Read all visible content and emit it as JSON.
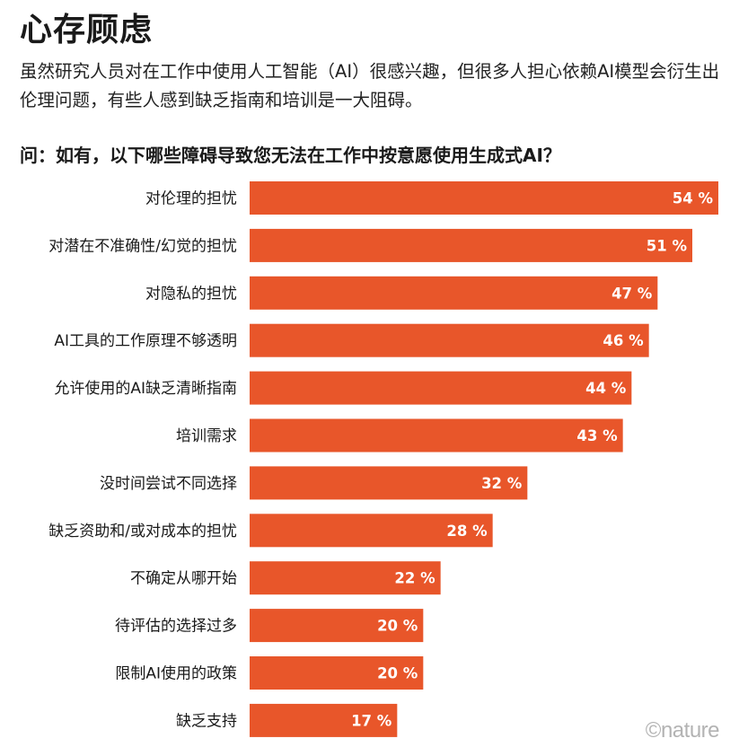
{
  "header": {
    "title": "心存顾虑",
    "subtitle": "虽然研究人员对在工作中使用人工智能（AI）很感兴趣，但很多人担心依赖AI模型会衍生出伦理问题，有些人感到缺乏指南和培训是一大阻碍。",
    "question": "问：如有，以下哪些障碍导致您无法在工作中按意愿使用生成式AI？"
  },
  "credit": "©nature",
  "colors": {
    "bar": "#e8562a",
    "label_text": "#ffffff"
  },
  "chart_data": {
    "type": "bar",
    "orientation": "horizontal",
    "categories": [
      "对伦理的担忧",
      "对潜在不准确性/幻觉的担忧",
      "对隐私的担忧",
      "AI工具的工作原理不够透明",
      "允许使用的AI缺乏清晰指南",
      "培训需求",
      "没时间尝试不同选择",
      "缺乏资助和/或对成本的担忧",
      "不确定从哪开始",
      "待评估的选择过多",
      "限制AI使用的政策",
      "缺乏支持"
    ],
    "values": [
      54,
      51,
      47,
      46,
      44,
      43,
      32,
      28,
      22,
      20,
      20,
      17
    ],
    "value_labels": [
      "54 %",
      "51 %",
      "47 %",
      "46 %",
      "44 %",
      "43 %",
      "32 %",
      "28 %",
      "22 %",
      "20 %",
      "20 %",
      "17 %"
    ],
    "unit": "%",
    "xlim": [
      0,
      54
    ],
    "grid": false,
    "legend": "none"
  }
}
